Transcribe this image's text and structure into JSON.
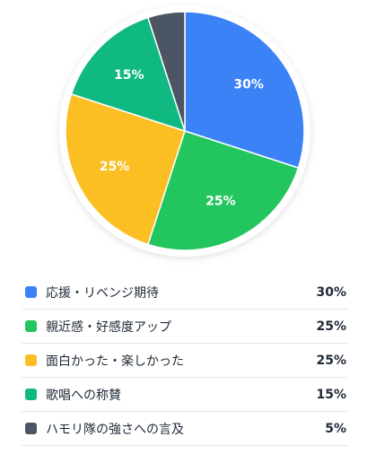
{
  "chart_data": {
    "type": "pie",
    "start_angle_deg": 0,
    "direction": "clockwise",
    "categories": [
      "応援・リベンジ期待",
      "親近感・好感度アップ",
      "面白かった・楽しかった",
      "歌唱への称賛",
      "ハモリ隊の強さへの言及"
    ],
    "values": [
      30,
      25,
      25,
      15,
      5
    ],
    "value_labels": [
      "30%",
      "25%",
      "25%",
      "15%",
      "5%"
    ],
    "colors": [
      "#3b82f6",
      "#22c55e",
      "#fbbf24",
      "#10b981",
      "#4b5563"
    ],
    "slice_labels_shown": [
      true,
      true,
      true,
      true,
      false
    ],
    "legend_position": "bottom",
    "border_color": "#ffffff"
  }
}
